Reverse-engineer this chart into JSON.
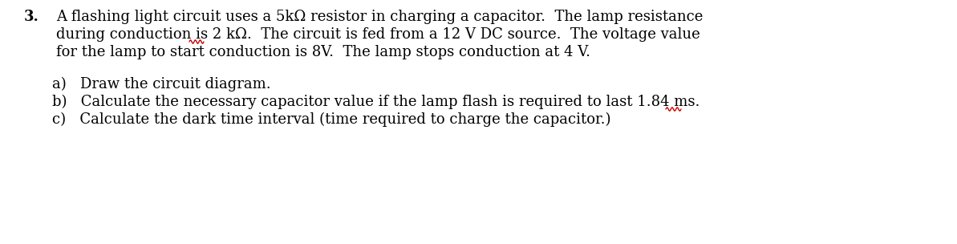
{
  "background_color": "#ffffff",
  "text_color": "#000000",
  "red_color": "#cc0000",
  "line1": "A flashing light circuit uses a 5kΩ resistor in charging a capacitor.  The lamp resistance",
  "line2": "during conduction is 2 kΩ.  The circuit is fed from a 12 V DC source.  The voltage value",
  "line3": "for the lamp to start conduction is 8V.  The lamp stops conduction at 4 V.",
  "item_a": "a)   Draw the circuit diagram.",
  "item_b": "b)   Calculate the necessary capacitor value if the lamp flash is required to last 1.84 ms.",
  "item_c": "c)   Calculate the dark time interval (time required to charge the capacitor.)",
  "font_size": 13.0,
  "fig_width": 11.93,
  "fig_height": 3.04,
  "dpi": 100
}
